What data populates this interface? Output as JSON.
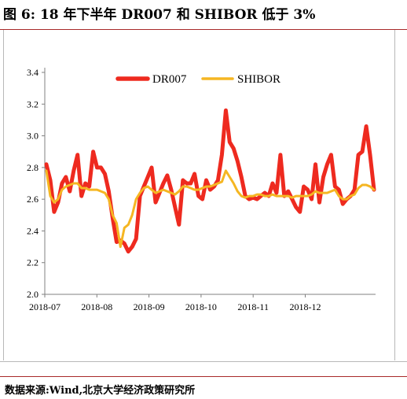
{
  "header": {
    "title": "图 6:  18 年下半年 DR007 和 SHIBOR 低于 3%"
  },
  "footer": {
    "source": "数据来源:Wind,北京大学经济政策研究所"
  },
  "colors": {
    "dr007": "#ee2a1f",
    "shibor": "#f5b622",
    "rule": "#a82a2a",
    "axis": "#808080"
  },
  "chart_data": {
    "type": "line",
    "title": "",
    "xlabel": "",
    "ylabel": "",
    "ylim": [
      2.0,
      3.4
    ],
    "yticks": [
      "2.0",
      "2.2",
      "2.4",
      "2.6",
      "2.8",
      "3.0",
      "3.2",
      "3.4"
    ],
    "xticks": [
      "2018-07",
      "2018-08",
      "2018-09",
      "2018-10",
      "2018-11",
      "2018-12"
    ],
    "legend_position": "top",
    "grid": false,
    "series": [
      {
        "name": "DR007",
        "values": [
          2.82,
          2.72,
          2.52,
          2.58,
          2.7,
          2.74,
          2.65,
          2.78,
          2.88,
          2.62,
          2.7,
          2.68,
          2.9,
          2.8,
          2.8,
          2.76,
          2.65,
          2.48,
          2.33,
          2.34,
          2.32,
          2.27,
          2.3,
          2.35,
          2.62,
          2.68,
          2.74,
          2.8,
          2.58,
          2.64,
          2.7,
          2.75,
          2.66,
          2.55,
          2.44,
          2.72,
          2.7,
          2.7,
          2.76,
          2.62,
          2.6,
          2.72,
          2.66,
          2.68,
          2.72,
          2.88,
          3.16,
          2.96,
          2.92,
          2.84,
          2.74,
          2.62,
          2.6,
          2.61,
          2.6,
          2.62,
          2.64,
          2.62,
          2.7,
          2.64,
          2.88,
          2.62,
          2.65,
          2.6,
          2.55,
          2.52,
          2.68,
          2.66,
          2.6,
          2.82,
          2.58,
          2.74,
          2.82,
          2.88,
          2.68,
          2.66,
          2.57,
          2.6,
          2.62,
          2.66,
          2.88,
          2.9,
          3.06,
          2.88,
          2.66
        ]
      },
      {
        "name": "SHIBOR",
        "values": [
          2.78,
          2.62,
          2.58,
          2.6,
          2.66,
          2.68,
          2.69,
          2.7,
          2.7,
          2.67,
          2.67,
          2.66,
          2.66,
          2.66,
          2.65,
          2.64,
          2.6,
          2.5,
          2.45,
          2.3,
          2.42,
          2.44,
          2.5,
          2.6,
          2.64,
          2.67,
          2.68,
          2.66,
          2.64,
          2.65,
          2.66,
          2.65,
          2.64,
          2.63,
          2.65,
          2.68,
          2.68,
          2.67,
          2.66,
          2.66,
          2.67,
          2.68,
          2.68,
          2.69,
          2.7,
          2.71,
          2.78,
          2.74,
          2.7,
          2.65,
          2.62,
          2.61,
          2.62,
          2.62,
          2.63,
          2.63,
          2.62,
          2.62,
          2.63,
          2.62,
          2.62,
          2.62,
          2.62,
          2.61,
          2.62,
          2.62,
          2.62,
          2.62,
          2.63,
          2.65,
          2.64,
          2.64,
          2.64,
          2.65,
          2.66,
          2.62,
          2.6,
          2.6,
          2.62,
          2.63,
          2.67,
          2.69,
          2.69,
          2.68,
          2.66
        ]
      }
    ]
  }
}
